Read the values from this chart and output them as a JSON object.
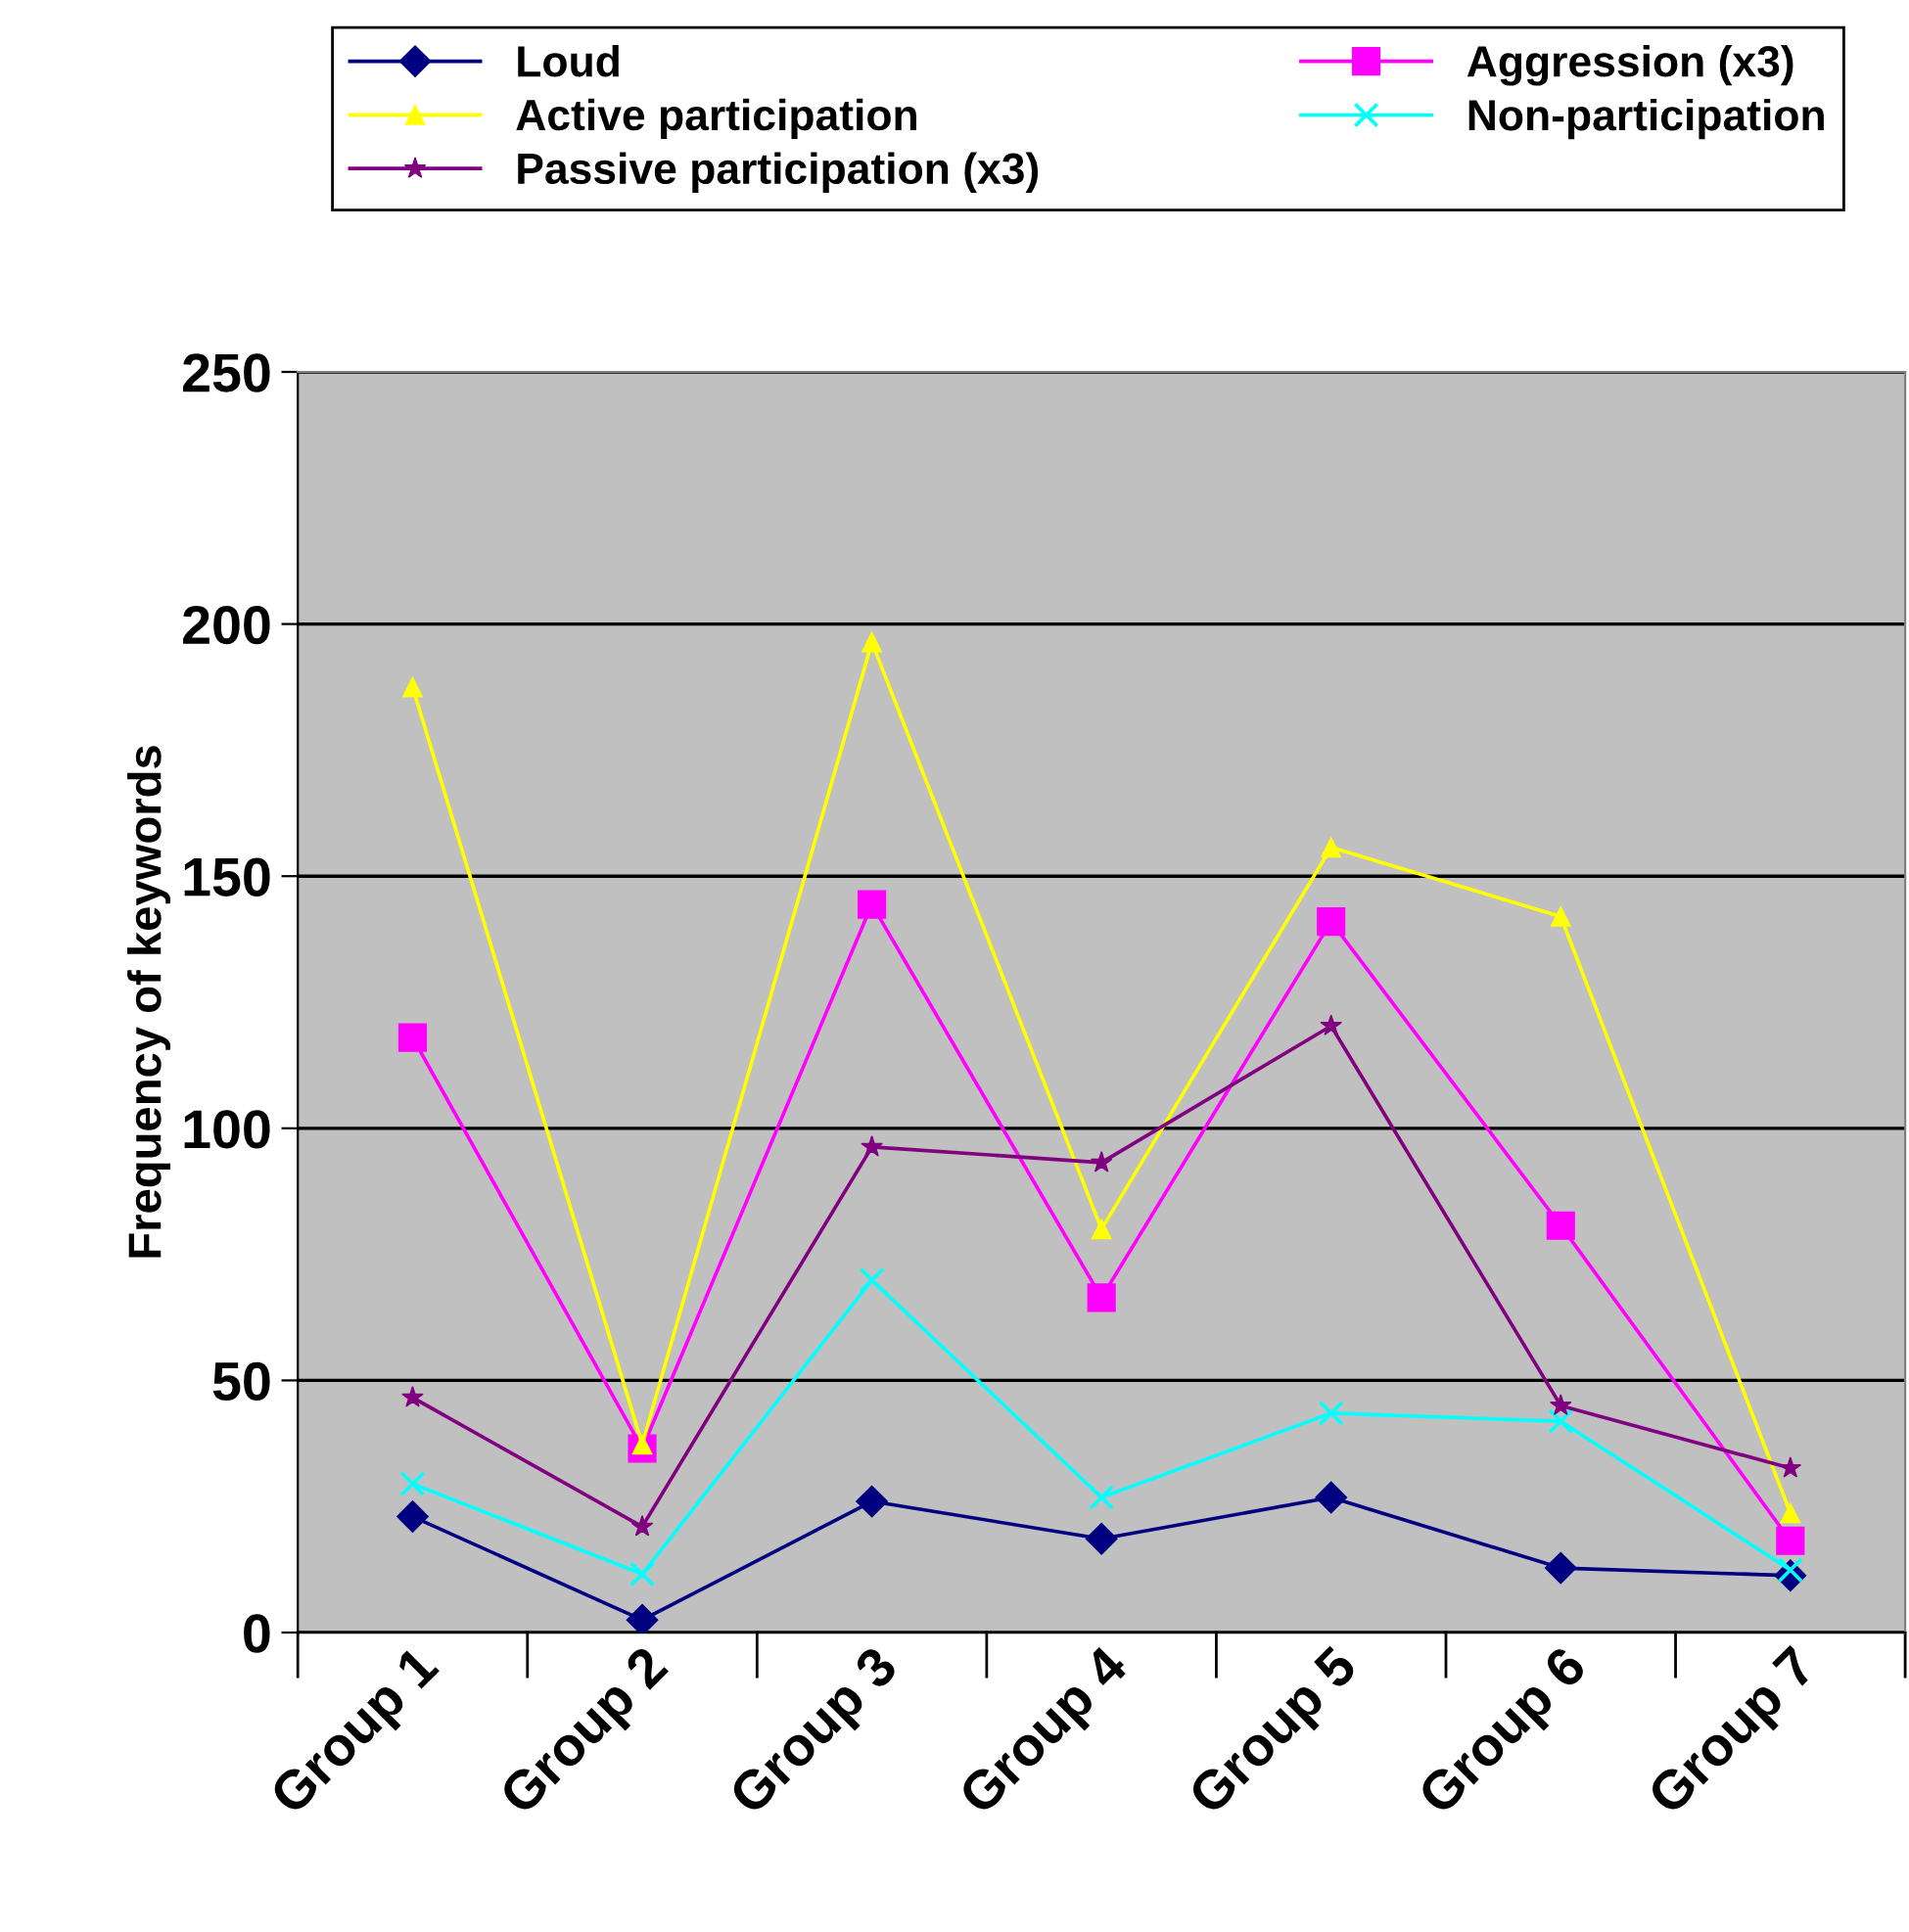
{
  "chart_data": {
    "type": "line",
    "ylabel": "Frequency of keywords",
    "categories": [
      "Group 1",
      "Group 2",
      "Group 3",
      "Group 4",
      "Group 5",
      "Group 6",
      "Group 7"
    ],
    "series": [
      {
        "name": "Loud",
        "color": "#000080",
        "marker": "diamond",
        "values": [
          23,
          2.5,
          26,
          18.6,
          26.8,
          12.8,
          11.3
        ]
      },
      {
        "name": "Aggression (x3)",
        "color": "#ff00ff",
        "marker": "square",
        "values": [
          118,
          36.5,
          144.4,
          66.4,
          141,
          80.7,
          18.2
        ]
      },
      {
        "name": "Active participation",
        "color": "#ffff00",
        "marker": "triangle",
        "values": [
          187.5,
          37.3,
          196.4,
          80,
          155.7,
          142,
          23.7
        ]
      },
      {
        "name": "Non-participation",
        "color": "#00ffff",
        "marker": "cross",
        "values": [
          29.5,
          11.6,
          69.9,
          26.8,
          43.5,
          41.9,
          12.4
        ]
      },
      {
        "name": "Passive participation (x3)",
        "color": "#800080",
        "marker": "star",
        "values": [
          46.6,
          21,
          96.3,
          93.2,
          120.3,
          45,
          32.6
        ]
      }
    ],
    "ylim": [
      0,
      250
    ],
    "yticks": [
      0,
      50,
      100,
      150,
      200,
      250
    ],
    "grid": "y",
    "legend": "top"
  }
}
